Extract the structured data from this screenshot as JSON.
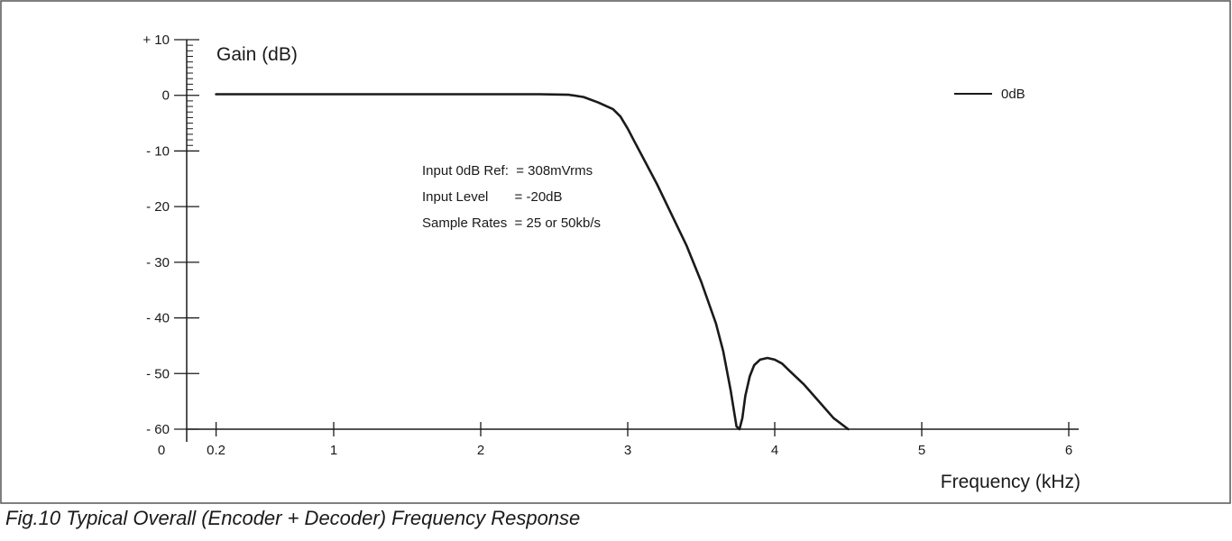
{
  "chart_data": {
    "type": "line",
    "ylabel": "Gain (dB)",
    "xlabel": "Frequency (kHz)",
    "ylim": [
      -60,
      10
    ],
    "xlim": [
      0,
      6
    ],
    "y_ticks": [
      "+ 10",
      "0",
      "- 10",
      "- 20",
      "- 30",
      "- 40",
      "- 50",
      "- 60"
    ],
    "y_tick_values": [
      10,
      0,
      -10,
      -20,
      -30,
      -40,
      -50,
      -60
    ],
    "x_ticks": [
      "0",
      "0.2",
      "1",
      "2",
      "3",
      "4",
      "5",
      "6"
    ],
    "x_tick_values": [
      0,
      0.2,
      1,
      2,
      3,
      4,
      5,
      6
    ],
    "legend": "right",
    "series": [
      {
        "name": "0dB",
        "x": [
          0.2,
          0.5,
          1.0,
          1.5,
          2.0,
          2.4,
          2.6,
          2.7,
          2.8,
          2.9,
          2.95,
          3.0,
          3.05,
          3.1,
          3.2,
          3.3,
          3.4,
          3.5,
          3.6,
          3.65,
          3.7,
          3.74,
          3.76,
          3.78,
          3.8,
          3.83,
          3.86,
          3.9,
          3.95,
          4.0,
          4.05,
          4.1,
          4.2,
          4.3,
          4.4,
          4.5
        ],
        "values": [
          0.2,
          0.2,
          0.2,
          0.2,
          0.2,
          0.2,
          0.1,
          -0.3,
          -1.3,
          -2.5,
          -3.8,
          -6.0,
          -8.5,
          -11.0,
          -16.0,
          -21.5,
          -27.0,
          -33.5,
          -41.0,
          -46.0,
          -53.0,
          -59.5,
          -60.0,
          -58.0,
          -54.0,
          -50.5,
          -48.5,
          -47.5,
          -47.2,
          -47.5,
          -48.2,
          -49.5,
          -52.0,
          -55.0,
          -58.0,
          -60.0
        ]
      }
    ],
    "annotations": [
      "Input 0dB Ref:  = 308mVrms",
      "Input Level       = -20dB",
      "Sample Rates  = 25 or 50kb/s"
    ]
  },
  "caption": "Fig.10 Typical Overall (Encoder + Decoder) Frequency Response",
  "colors": {
    "line": "#1a1a1a",
    "frame": "#555555"
  }
}
